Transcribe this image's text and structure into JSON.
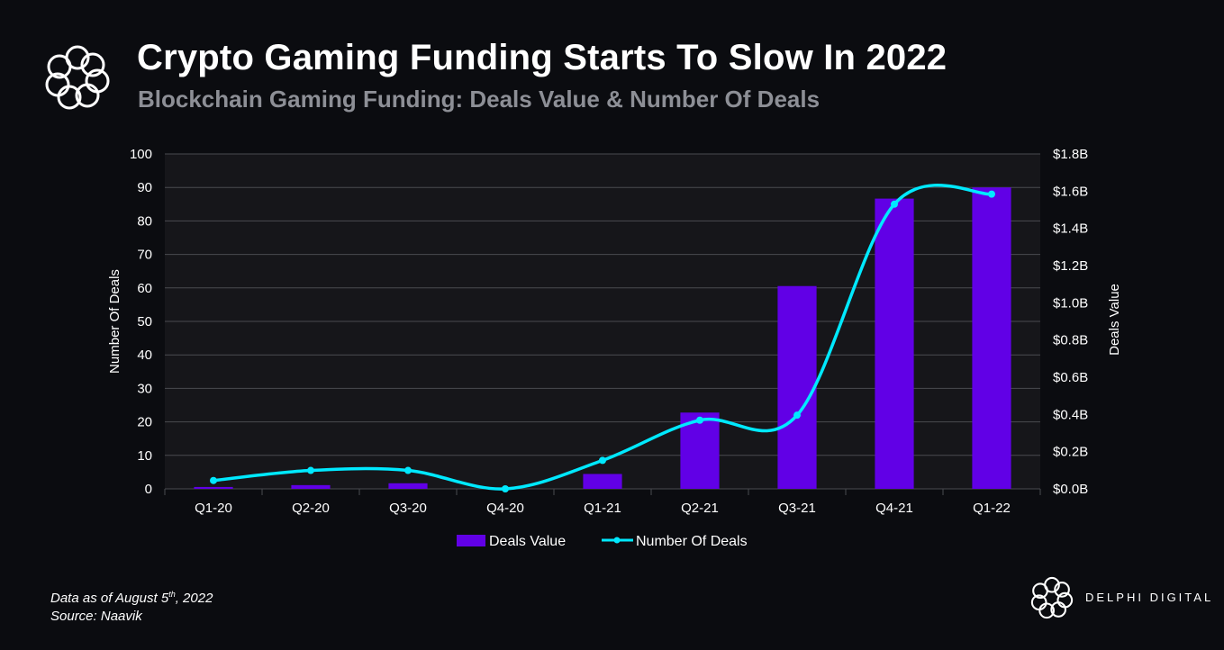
{
  "header": {
    "title": "Crypto Gaming Funding Starts To Slow In 2022",
    "subtitle": "Blockchain Gaming Funding: Deals Value & Number Of Deals"
  },
  "footer": {
    "data_as_of_prefix": "Data as of August 5",
    "data_as_of_sup": "th",
    "data_as_of_suffix": ", 2022",
    "source": "Source: Naavik",
    "brand": "DELPHI DIGITAL"
  },
  "colors": {
    "bar": "#6100e6",
    "line": "#00e9ff",
    "grid": "#4a4b50",
    "plot_bg": "#16161a",
    "page_bg": "#0b0c10"
  },
  "icons": [
    "delphi-logo-icon",
    "delphi-brand-logo-icon"
  ],
  "chart_data": {
    "type": "bar",
    "categories": [
      "Q1-20",
      "Q2-20",
      "Q3-20",
      "Q4-20",
      "Q1-21",
      "Q2-21",
      "Q3-21",
      "Q4-21",
      "Q1-22"
    ],
    "series": [
      {
        "name": "Deals Value",
        "type": "bar",
        "axis": "right",
        "values": [
          0.01,
          0.02,
          0.03,
          0.0,
          0.08,
          0.41,
          1.09,
          1.56,
          1.62
        ]
      },
      {
        "name": "Number Of Deals",
        "type": "line",
        "axis": "left",
        "values": [
          2.5,
          5.5,
          5.5,
          0,
          8.5,
          20.5,
          22,
          85,
          88
        ]
      }
    ],
    "left_axis": {
      "label": "Number Of Deals",
      "ylim": [
        0,
        100
      ],
      "ticks": [
        "0",
        "10",
        "20",
        "30",
        "40",
        "50",
        "60",
        "70",
        "80",
        "90",
        "100"
      ]
    },
    "right_axis": {
      "label": "Deals Value",
      "unit": "B USD",
      "ylim": [
        0,
        1.8
      ],
      "ticks": [
        "$0.0B",
        "$0.2B",
        "$0.4B",
        "$0.6B",
        "$0.8B",
        "$1.0B",
        "$1.2B",
        "$1.4B",
        "$1.6B",
        "$1.8B"
      ]
    },
    "grid": true,
    "legend_position": "bottom"
  }
}
